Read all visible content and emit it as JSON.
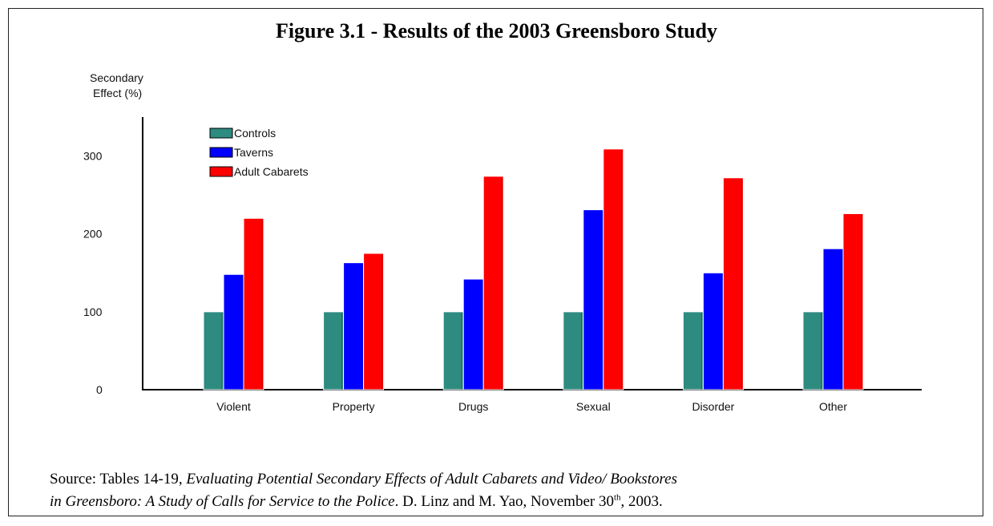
{
  "chart_data": {
    "type": "bar",
    "title": "Figure 3.1 - Results of the 2003 Greensboro Study",
    "ylabel": "Secondary Effect (%)",
    "ylabel_lines": [
      "Secondary",
      "Effect (%)"
    ],
    "xlabel": "",
    "ylim": [
      0,
      350
    ],
    "yticks": [
      0,
      100,
      200,
      300
    ],
    "grid": false,
    "legend_position": "top-left",
    "categories": [
      "Violent",
      "Property",
      "Drugs",
      "Sexual",
      "Disorder",
      "Other"
    ],
    "series": [
      {
        "name": "Controls",
        "color": "#2e8b80",
        "values": [
          100,
          100,
          100,
          100,
          100,
          100
        ]
      },
      {
        "name": "Taverns",
        "color": "#0000ff",
        "values": [
          148,
          163,
          142,
          231,
          150,
          181
        ]
      },
      {
        "name": "Adult Cabarets",
        "color": "#ff0000",
        "values": [
          220,
          175,
          274,
          309,
          272,
          226
        ]
      }
    ]
  },
  "source": {
    "line1_plain": "Source: Tables 14-19, ",
    "line1_italic": "Evaluating Potential Secondary Effects of Adult Cabarets and Video/ Bookstores",
    "line2_italic": "in Greensboro: A Study of Calls for Service to the Police",
    "line2_plain": ".  D. Linz and M. Yao, November 30",
    "line2_sup": "th",
    "line2_end": ", 2003."
  }
}
